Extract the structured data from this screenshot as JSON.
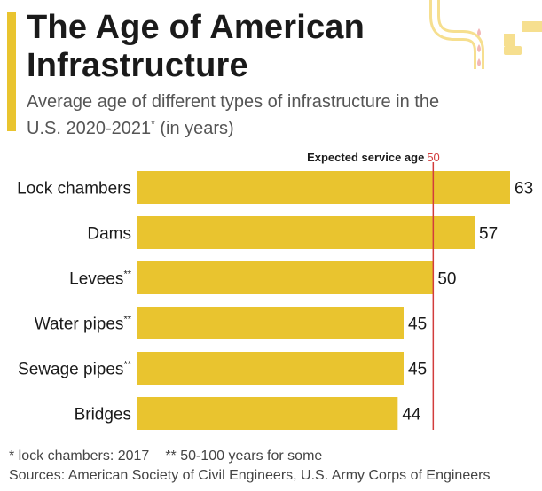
{
  "header": {
    "title": "The Age of American Infrastructure",
    "subtitle_main": "Average age of different types of infrastructure in the U.S. 2020-2021",
    "subtitle_star": "*",
    "subtitle_tail": " (in years)"
  },
  "chart_data": {
    "type": "bar",
    "orientation": "horizontal",
    "categories": [
      "Lock chambers",
      "Dams",
      "Levees",
      "Water pipes",
      "Sewage pipes",
      "Bridges"
    ],
    "category_marks": [
      "",
      "",
      "**",
      "**",
      "**",
      ""
    ],
    "values": [
      63,
      57,
      50,
      45,
      45,
      44
    ],
    "xlim": [
      0,
      65
    ],
    "grid": false,
    "bar_color": "#e9c42f",
    "reference_line": {
      "label": "Expected service age",
      "value": 50,
      "value_label": "50",
      "color": "#d23c3c"
    }
  },
  "footer": {
    "note_1": "* lock chambers: 2017",
    "note_2": "** 50-100 years for some",
    "sources": "Sources: American Society of Civil Engineers, U.S. Army Corps of Engineers"
  },
  "colors": {
    "accent": "#e9c42f",
    "reference": "#d23c3c",
    "droplet": "#f2b8b8"
  },
  "icons": {
    "decoration": "pipe-icon"
  }
}
